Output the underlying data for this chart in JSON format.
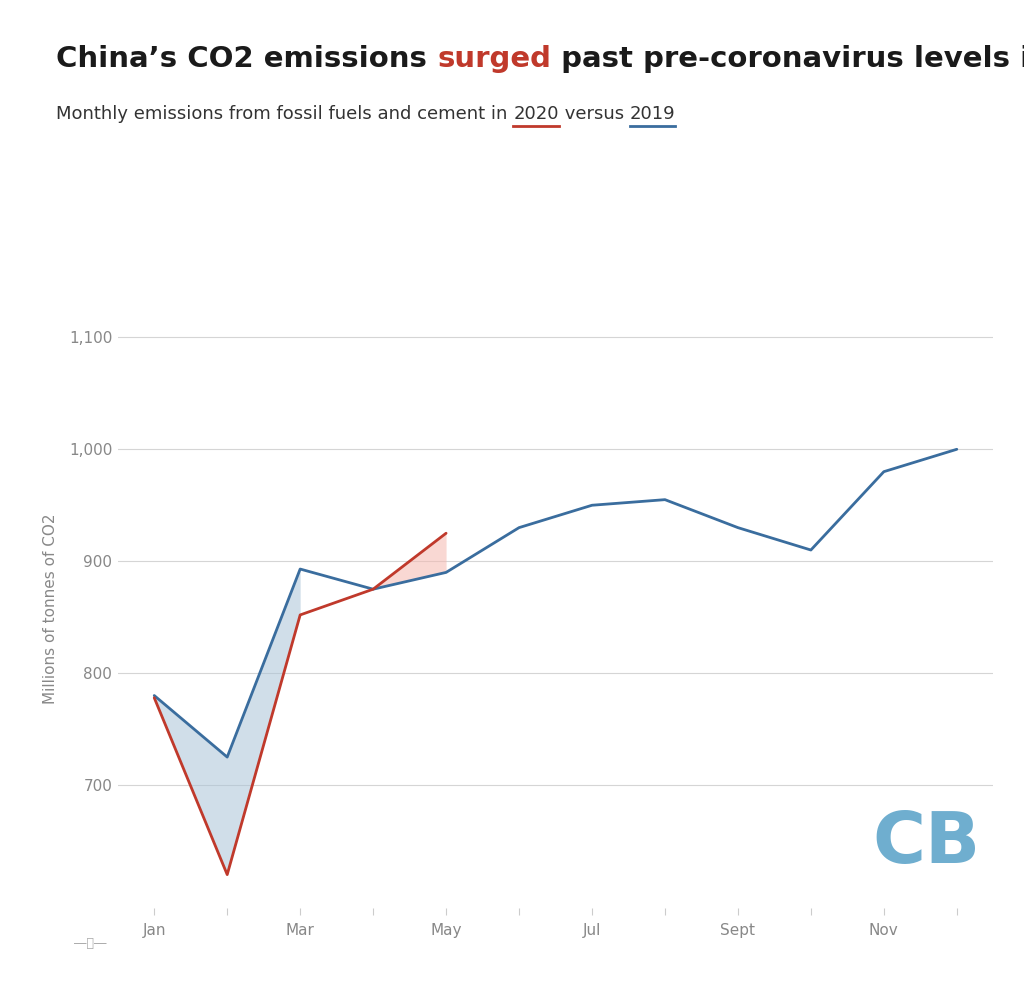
{
  "months_2019": [
    1,
    2,
    3,
    4,
    5,
    6,
    7,
    8,
    9,
    10,
    11,
    12
  ],
  "values_2019": [
    780,
    725,
    893,
    875,
    890,
    930,
    950,
    955,
    930,
    910,
    980,
    1000
  ],
  "months_2020": [
    1,
    2,
    3,
    4,
    5
  ],
  "values_2020": [
    778,
    620,
    852,
    875,
    925
  ],
  "color_2019": "#3a6d9e",
  "color_2020": "#c0392b",
  "fill_below_color": "#aac4d8",
  "fill_above_color": "#f5b8b0",
  "fill_alpha": 0.55,
  "title_black1": "China’s CO2 emissions ",
  "title_red": "surged",
  "title_black2": " past pre-coronavirus levels in May",
  "subtitle_start": "Monthly emissions from fossil fuels and cement in ",
  "subtitle_2020": "2020",
  "subtitle_mid": " versus ",
  "subtitle_2019": "2019",
  "ylabel": "Millions of tonnes of CO2",
  "yticks": [
    700,
    800,
    900,
    1000,
    1100
  ],
  "ylim_bottom": 590,
  "ylim_top": 1125,
  "xtick_labels": [
    "Jan",
    "",
    "Mar",
    "",
    "May",
    "",
    "Jul",
    "",
    "Sept",
    "",
    "Nov",
    ""
  ],
  "xtick_positions": [
    1,
    2,
    3,
    4,
    5,
    6,
    7,
    8,
    9,
    10,
    11,
    12
  ],
  "title_fontsize": 21,
  "subtitle_fontsize": 13,
  "axis_label_fontsize": 11,
  "tick_label_fontsize": 11,
  "background_color": "#ffffff",
  "grid_color": "#d5d5d5",
  "cb_color": "#5ba3c9",
  "cb_fontsize": 52,
  "line_width": 2.0,
  "underline_red": "#c0392b",
  "underline_blue": "#3a6d9e"
}
